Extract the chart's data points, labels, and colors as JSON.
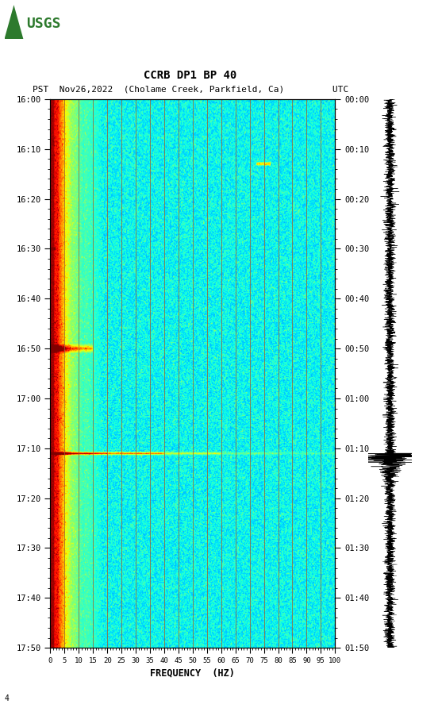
{
  "title_line1": "CCRB DP1 BP 40",
  "title_line2": "PST  Nov26,2022  (Cholame Creek, Parkfield, Ca)         UTC",
  "xlabel": "FREQUENCY  (HZ)",
  "freq_ticks": [
    0,
    5,
    10,
    15,
    20,
    25,
    30,
    35,
    40,
    45,
    50,
    55,
    60,
    65,
    70,
    75,
    80,
    85,
    90,
    95,
    100
  ],
  "pst_labels": [
    "16:00",
    "16:10",
    "16:20",
    "16:30",
    "16:40",
    "16:50",
    "17:00",
    "17:10",
    "17:20",
    "17:30",
    "17:40",
    "17:50"
  ],
  "utc_labels": [
    "00:00",
    "00:10",
    "00:20",
    "00:30",
    "00:40",
    "00:50",
    "01:00",
    "01:10",
    "01:20",
    "01:30",
    "01:40",
    "01:50"
  ],
  "duration_minutes": 110,
  "vertical_lines_freq": [
    5,
    10,
    15,
    20,
    25,
    30,
    35,
    40,
    45,
    50,
    55,
    60,
    65,
    70,
    75,
    80,
    85,
    90,
    95,
    100
  ],
  "seismic_event_time_min": 71,
  "vline_color": "#996633",
  "vline_alpha": 0.8
}
